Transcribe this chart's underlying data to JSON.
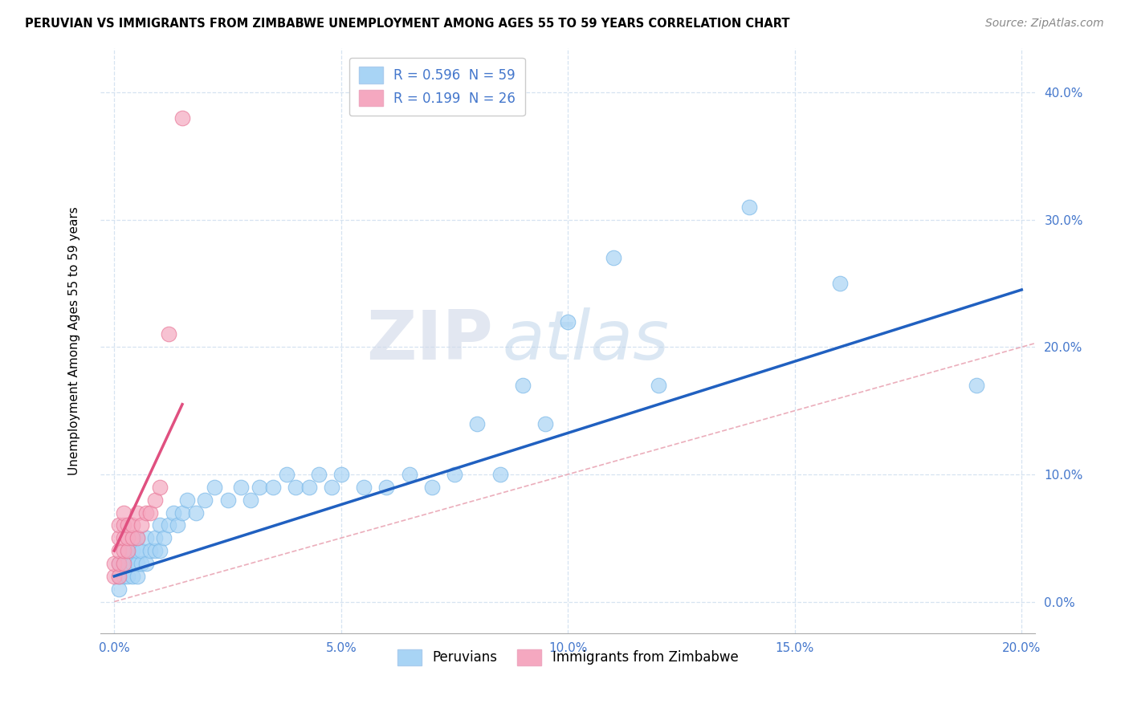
{
  "title": "PERUVIAN VS IMMIGRANTS FROM ZIMBABWE UNEMPLOYMENT AMONG AGES 55 TO 59 YEARS CORRELATION CHART",
  "source": "Source: ZipAtlas.com",
  "xlim": [
    -0.003,
    0.203
  ],
  "ylim": [
    -0.025,
    0.435
  ],
  "ylabel": "Unemployment Among Ages 55 to 59 years",
  "legend_label1": "Peruvians",
  "legend_label2": "Immigrants from Zimbabwe",
  "r1": 0.596,
  "n1": 59,
  "r2": 0.199,
  "n2": 26,
  "color1": "#a8d4f5",
  "color2": "#f5a8c0",
  "line_color1": "#2060c0",
  "line_color2": "#e05080",
  "diagonal_color": "#e8a0b0",
  "watermark_zip": "ZIP",
  "watermark_atlas": "atlas",
  "background_color": "#FFFFFF",
  "peruvian_x": [
    0.001,
    0.001,
    0.001,
    0.002,
    0.002,
    0.003,
    0.003,
    0.003,
    0.004,
    0.004,
    0.004,
    0.005,
    0.005,
    0.005,
    0.005,
    0.006,
    0.006,
    0.007,
    0.007,
    0.008,
    0.009,
    0.009,
    0.01,
    0.01,
    0.011,
    0.012,
    0.013,
    0.014,
    0.015,
    0.016,
    0.018,
    0.02,
    0.022,
    0.025,
    0.028,
    0.03,
    0.032,
    0.035,
    0.038,
    0.04,
    0.043,
    0.045,
    0.048,
    0.05,
    0.055,
    0.06,
    0.065,
    0.07,
    0.075,
    0.08,
    0.085,
    0.09,
    0.095,
    0.1,
    0.11,
    0.12,
    0.14,
    0.16,
    0.19
  ],
  "peruvian_y": [
    0.01,
    0.02,
    0.03,
    0.02,
    0.03,
    0.02,
    0.03,
    0.04,
    0.02,
    0.03,
    0.04,
    0.02,
    0.03,
    0.04,
    0.05,
    0.03,
    0.04,
    0.03,
    0.05,
    0.04,
    0.04,
    0.05,
    0.04,
    0.06,
    0.05,
    0.06,
    0.07,
    0.06,
    0.07,
    0.08,
    0.07,
    0.08,
    0.09,
    0.08,
    0.09,
    0.08,
    0.09,
    0.09,
    0.1,
    0.09,
    0.09,
    0.1,
    0.09,
    0.1,
    0.09,
    0.09,
    0.1,
    0.09,
    0.1,
    0.14,
    0.1,
    0.17,
    0.14,
    0.22,
    0.27,
    0.17,
    0.31,
    0.25,
    0.17
  ],
  "zimbabwe_x": [
    0.0,
    0.0,
    0.001,
    0.001,
    0.001,
    0.001,
    0.001,
    0.002,
    0.002,
    0.002,
    0.002,
    0.002,
    0.003,
    0.003,
    0.003,
    0.004,
    0.004,
    0.005,
    0.005,
    0.006,
    0.007,
    0.008,
    0.009,
    0.01,
    0.012,
    0.015
  ],
  "zimbabwe_y": [
    0.02,
    0.03,
    0.02,
    0.03,
    0.04,
    0.05,
    0.06,
    0.03,
    0.04,
    0.05,
    0.06,
    0.07,
    0.04,
    0.05,
    0.06,
    0.05,
    0.06,
    0.05,
    0.07,
    0.06,
    0.07,
    0.07,
    0.08,
    0.09,
    0.21,
    0.38
  ],
  "line1_x0": 0.0,
  "line1_y0": 0.02,
  "line1_x1": 0.2,
  "line1_y1": 0.245,
  "line2_x0": 0.0,
  "line2_y0": 0.04,
  "line2_x1": 0.015,
  "line2_y1": 0.155
}
